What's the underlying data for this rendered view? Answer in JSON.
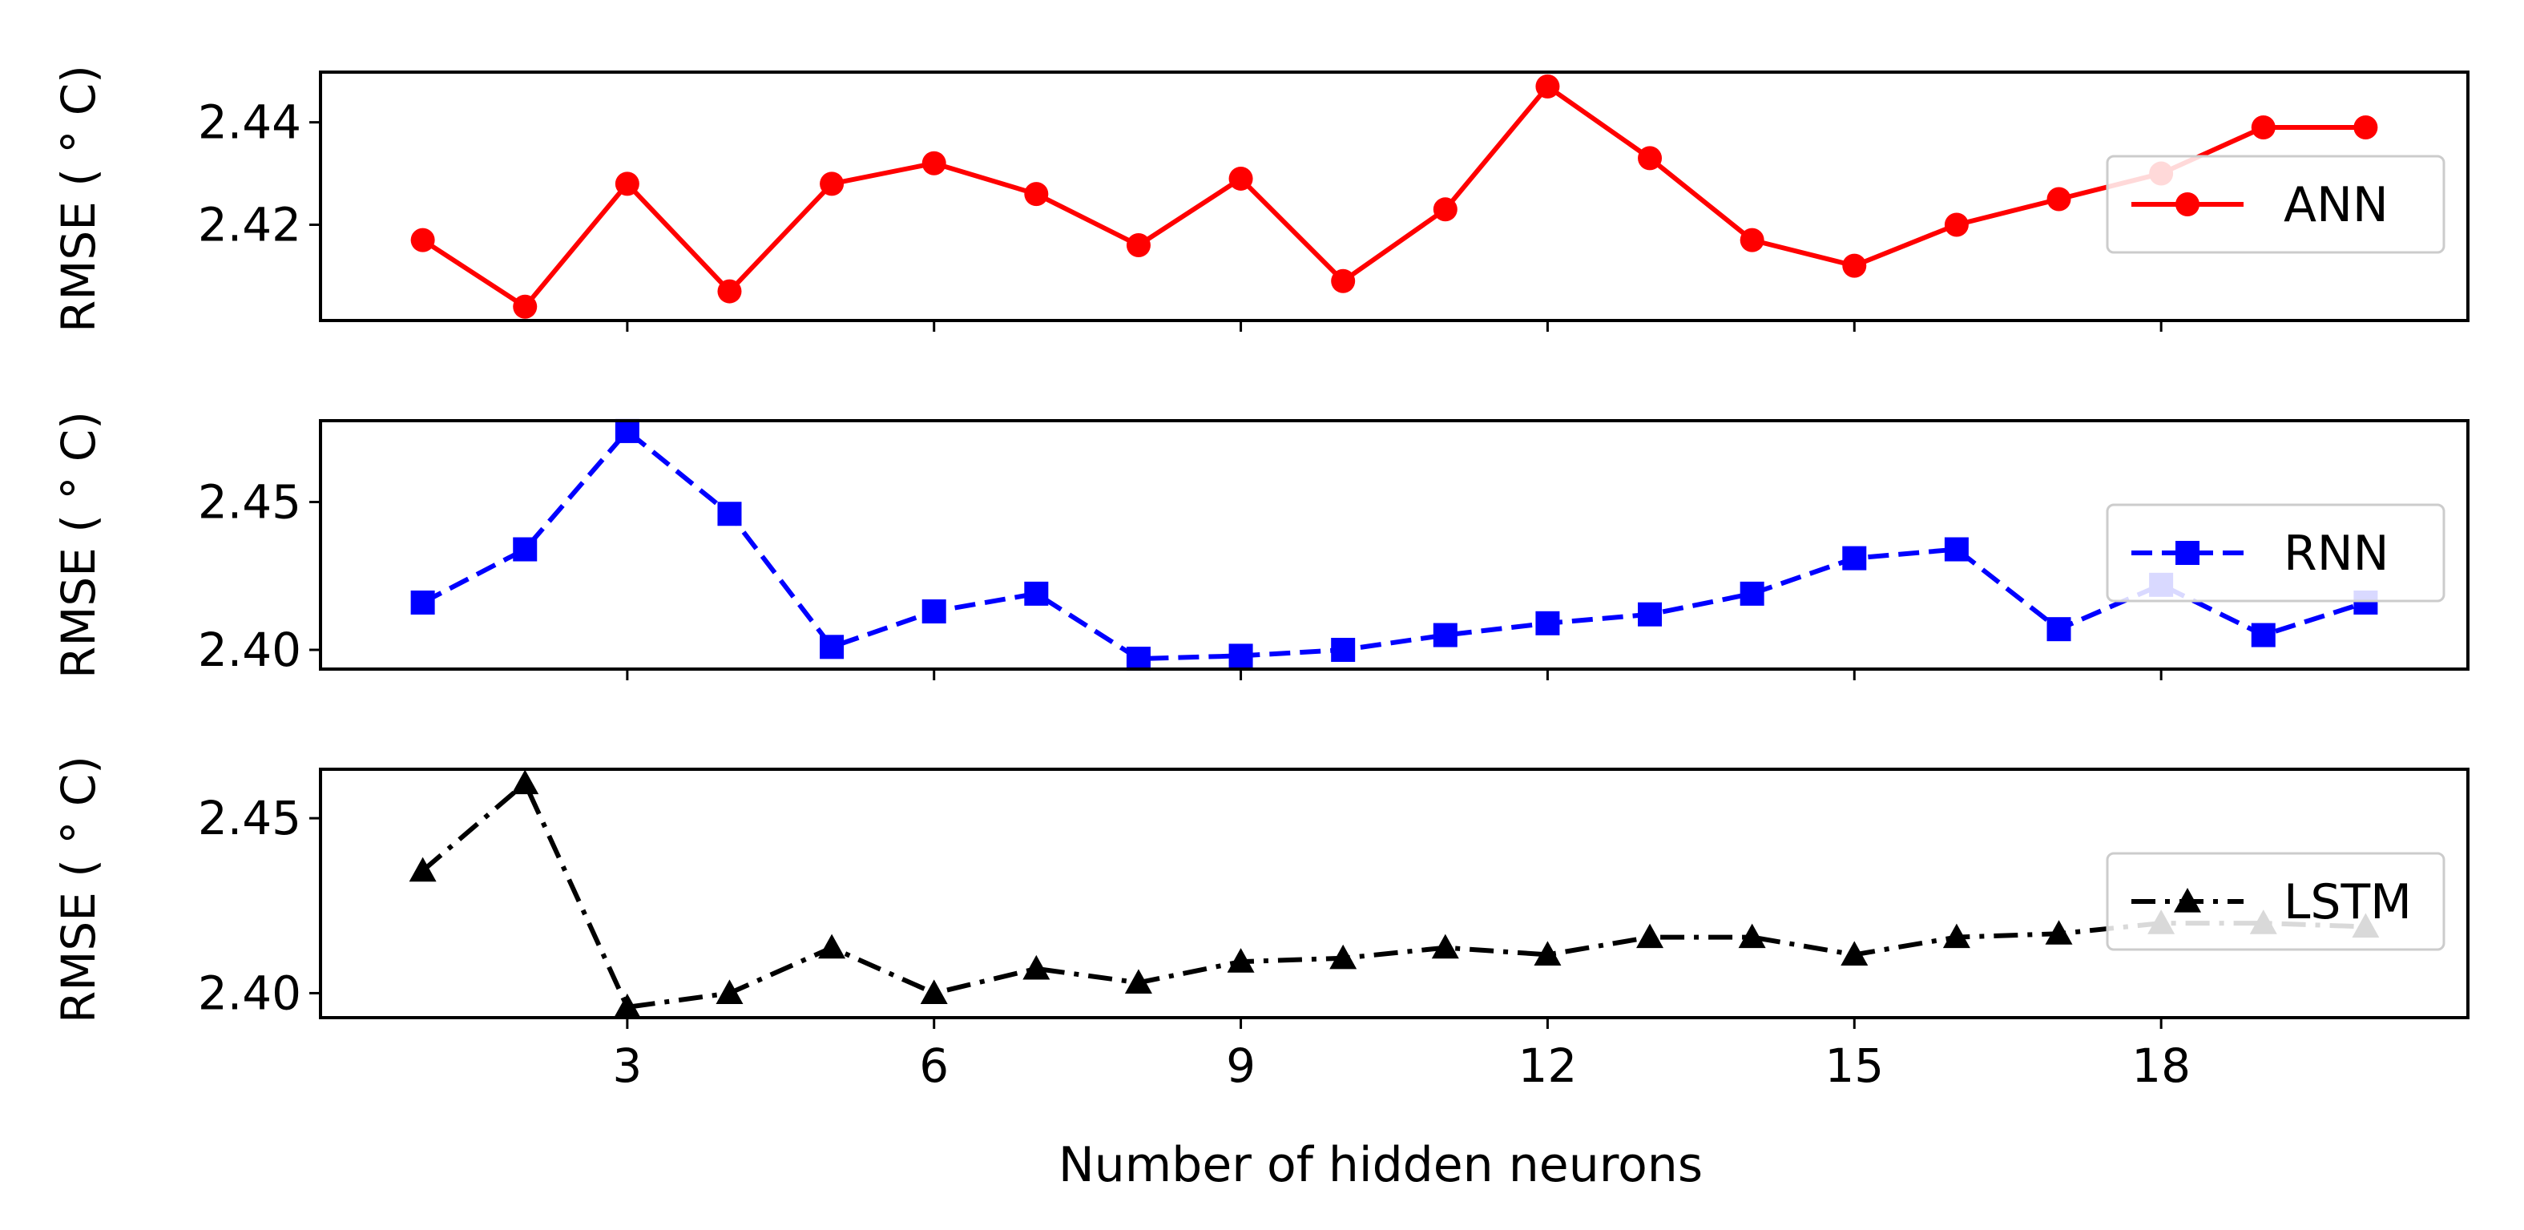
{
  "chart_data": [
    {
      "type": "line",
      "x": [
        1,
        2,
        3,
        4,
        5,
        6,
        7,
        8,
        9,
        10,
        11,
        12,
        13,
        14,
        15,
        16,
        17,
        18,
        19,
        20
      ],
      "series": [
        {
          "name": "ANN",
          "color": "#ff0000",
          "marker": "circle",
          "linestyle": "solid",
          "values": [
            2.417,
            2.404,
            2.428,
            2.407,
            2.428,
            2.432,
            2.426,
            2.416,
            2.429,
            2.409,
            2.423,
            2.447,
            2.433,
            2.417,
            2.412,
            2.42,
            2.425,
            2.43,
            2.439,
            2.439
          ]
        }
      ],
      "ylabel": "RMSE ( ° C)",
      "ylim": [
        2.4013,
        2.4498
      ],
      "yticks": [
        2.42,
        2.44
      ],
      "ytick_labels": [
        "2.42",
        "2.44"
      ],
      "legend_position": "right"
    },
    {
      "type": "line",
      "x": [
        1,
        2,
        3,
        4,
        5,
        6,
        7,
        8,
        9,
        10,
        11,
        12,
        13,
        14,
        15,
        16,
        17,
        18,
        19,
        20
      ],
      "series": [
        {
          "name": "RNN",
          "color": "#0000ff",
          "marker": "square",
          "linestyle": "dashed",
          "values": [
            2.416,
            2.434,
            2.474,
            2.446,
            2.401,
            2.413,
            2.419,
            2.397,
            2.398,
            2.4,
            2.405,
            2.409,
            2.412,
            2.419,
            2.431,
            2.434,
            2.407,
            2.422,
            2.405,
            2.416
          ]
        }
      ],
      "ylabel": "RMSE ( ° C)",
      "ylim": [
        2.3935,
        2.4775
      ],
      "yticks": [
        2.4,
        2.45
      ],
      "ytick_labels": [
        "2.40",
        "2.45"
      ],
      "legend_position": "right"
    },
    {
      "type": "line",
      "x": [
        1,
        2,
        3,
        4,
        5,
        6,
        7,
        8,
        9,
        10,
        11,
        12,
        13,
        14,
        15,
        16,
        17,
        18,
        19,
        20
      ],
      "series": [
        {
          "name": "LSTM",
          "color": "#000000",
          "marker": "triangle",
          "linestyle": "dashdot",
          "values": [
            2.435,
            2.46,
            2.396,
            2.4,
            2.413,
            2.4,
            2.407,
            2.403,
            2.409,
            2.41,
            2.413,
            2.411,
            2.416,
            2.416,
            2.411,
            2.416,
            2.417,
            2.42,
            2.42,
            2.419
          ]
        }
      ],
      "ylabel": "RMSE ( ° C)",
      "ylim": [
        2.393,
        2.464
      ],
      "yticks": [
        2.4,
        2.45
      ],
      "ytick_labels": [
        "2.40",
        "2.45"
      ],
      "legend_position": "right"
    }
  ],
  "xaxis": {
    "label": "Number of hidden neurons",
    "ticks": [
      3,
      6,
      9,
      12,
      15,
      18
    ],
    "tick_labels": [
      "3",
      "6",
      "9",
      "12",
      "15",
      "18"
    ],
    "xlim": [
      -0.0,
      21.0
    ]
  }
}
